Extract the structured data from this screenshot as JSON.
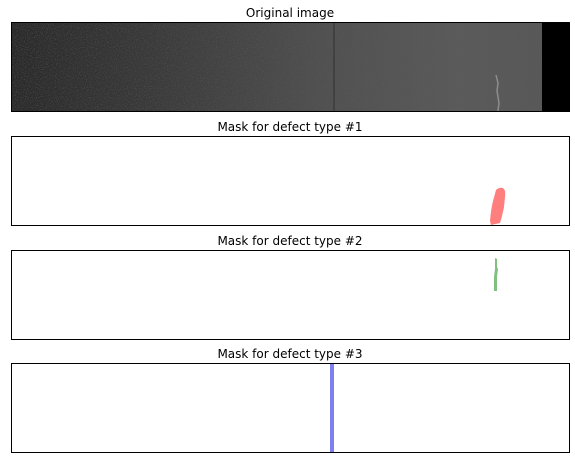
{
  "figure": {
    "panels": [
      {
        "title": "Original image",
        "content": "steel-surface-photo"
      },
      {
        "title": "Mask for defect type #1",
        "mask_color": "#ff7f7f"
      },
      {
        "title": "Mask for defect type #2",
        "mask_color": "#7fbf7f"
      },
      {
        "title": "Mask for defect type #3",
        "mask_color": "#7f7fef"
      }
    ]
  }
}
